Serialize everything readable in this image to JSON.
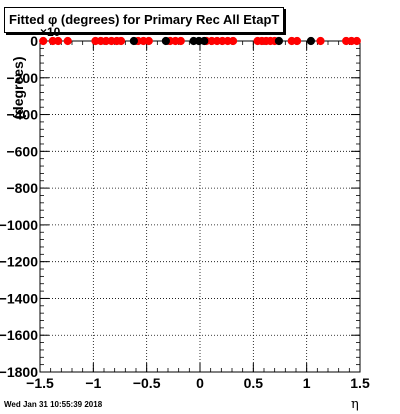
{
  "chart_data": {
    "type": "scatter",
    "title": "Fitted φ (degrees) for Primary Rec All EtapT",
    "ylabel": "(degrees)",
    "xlabel": "η",
    "y_exponent": "×10",
    "xlim": [
      -1.5,
      1.5
    ],
    "ylim": [
      -1800,
      0
    ],
    "x_ticks": [
      "−1.5",
      "−1",
      "−0.5",
      "0",
      "0.5",
      "1",
      "1.5"
    ],
    "y_ticks": [
      "0",
      "−200",
      "−400",
      "−600",
      "−800",
      "−1000",
      "−1200",
      "−1400",
      "−1600",
      "−1800"
    ],
    "grid": true,
    "series": [
      {
        "color": "#ff0000",
        "points": [
          {
            "x": -1.47,
            "y": 0
          },
          {
            "x": -1.38,
            "y": 0
          },
          {
            "x": -1.33,
            "y": 0
          },
          {
            "x": -1.24,
            "y": 0
          },
          {
            "x": -0.98,
            "y": 0
          },
          {
            "x": -0.93,
            "y": 0
          },
          {
            "x": -0.88,
            "y": 0
          },
          {
            "x": -0.83,
            "y": 0
          },
          {
            "x": -0.78,
            "y": 0
          },
          {
            "x": -0.74,
            "y": 0
          },
          {
            "x": -0.58,
            "y": 0
          },
          {
            "x": -0.53,
            "y": 0
          },
          {
            "x": -0.48,
            "y": 0
          },
          {
            "x": -0.28,
            "y": 0
          },
          {
            "x": -0.23,
            "y": 0
          },
          {
            "x": -0.18,
            "y": 0
          },
          {
            "x": 0.06,
            "y": 0
          },
          {
            "x": 0.11,
            "y": 0
          },
          {
            "x": 0.16,
            "y": 0
          },
          {
            "x": 0.21,
            "y": 0
          },
          {
            "x": 0.26,
            "y": 0
          },
          {
            "x": 0.31,
            "y": 0
          },
          {
            "x": 0.54,
            "y": 0
          },
          {
            "x": 0.58,
            "y": 0
          },
          {
            "x": 0.62,
            "y": 0
          },
          {
            "x": 0.66,
            "y": 0
          },
          {
            "x": 0.7,
            "y": 0
          },
          {
            "x": 0.86,
            "y": 0
          },
          {
            "x": 0.91,
            "y": 0
          },
          {
            "x": 1.13,
            "y": 0
          },
          {
            "x": 1.37,
            "y": 0
          },
          {
            "x": 1.42,
            "y": 0
          },
          {
            "x": 1.47,
            "y": 0
          }
        ]
      },
      {
        "color": "#000000",
        "points": [
          {
            "x": -0.62,
            "y": 0
          },
          {
            "x": -0.32,
            "y": 0
          },
          {
            "x": -0.06,
            "y": 0
          },
          {
            "x": -0.01,
            "y": 0
          },
          {
            "x": 0.04,
            "y": 0
          },
          {
            "x": 0.74,
            "y": 0
          },
          {
            "x": 1.04,
            "y": 0
          }
        ]
      }
    ]
  },
  "footer": {
    "datestamp": "Wed Jan 31 10:55:39 2018"
  }
}
